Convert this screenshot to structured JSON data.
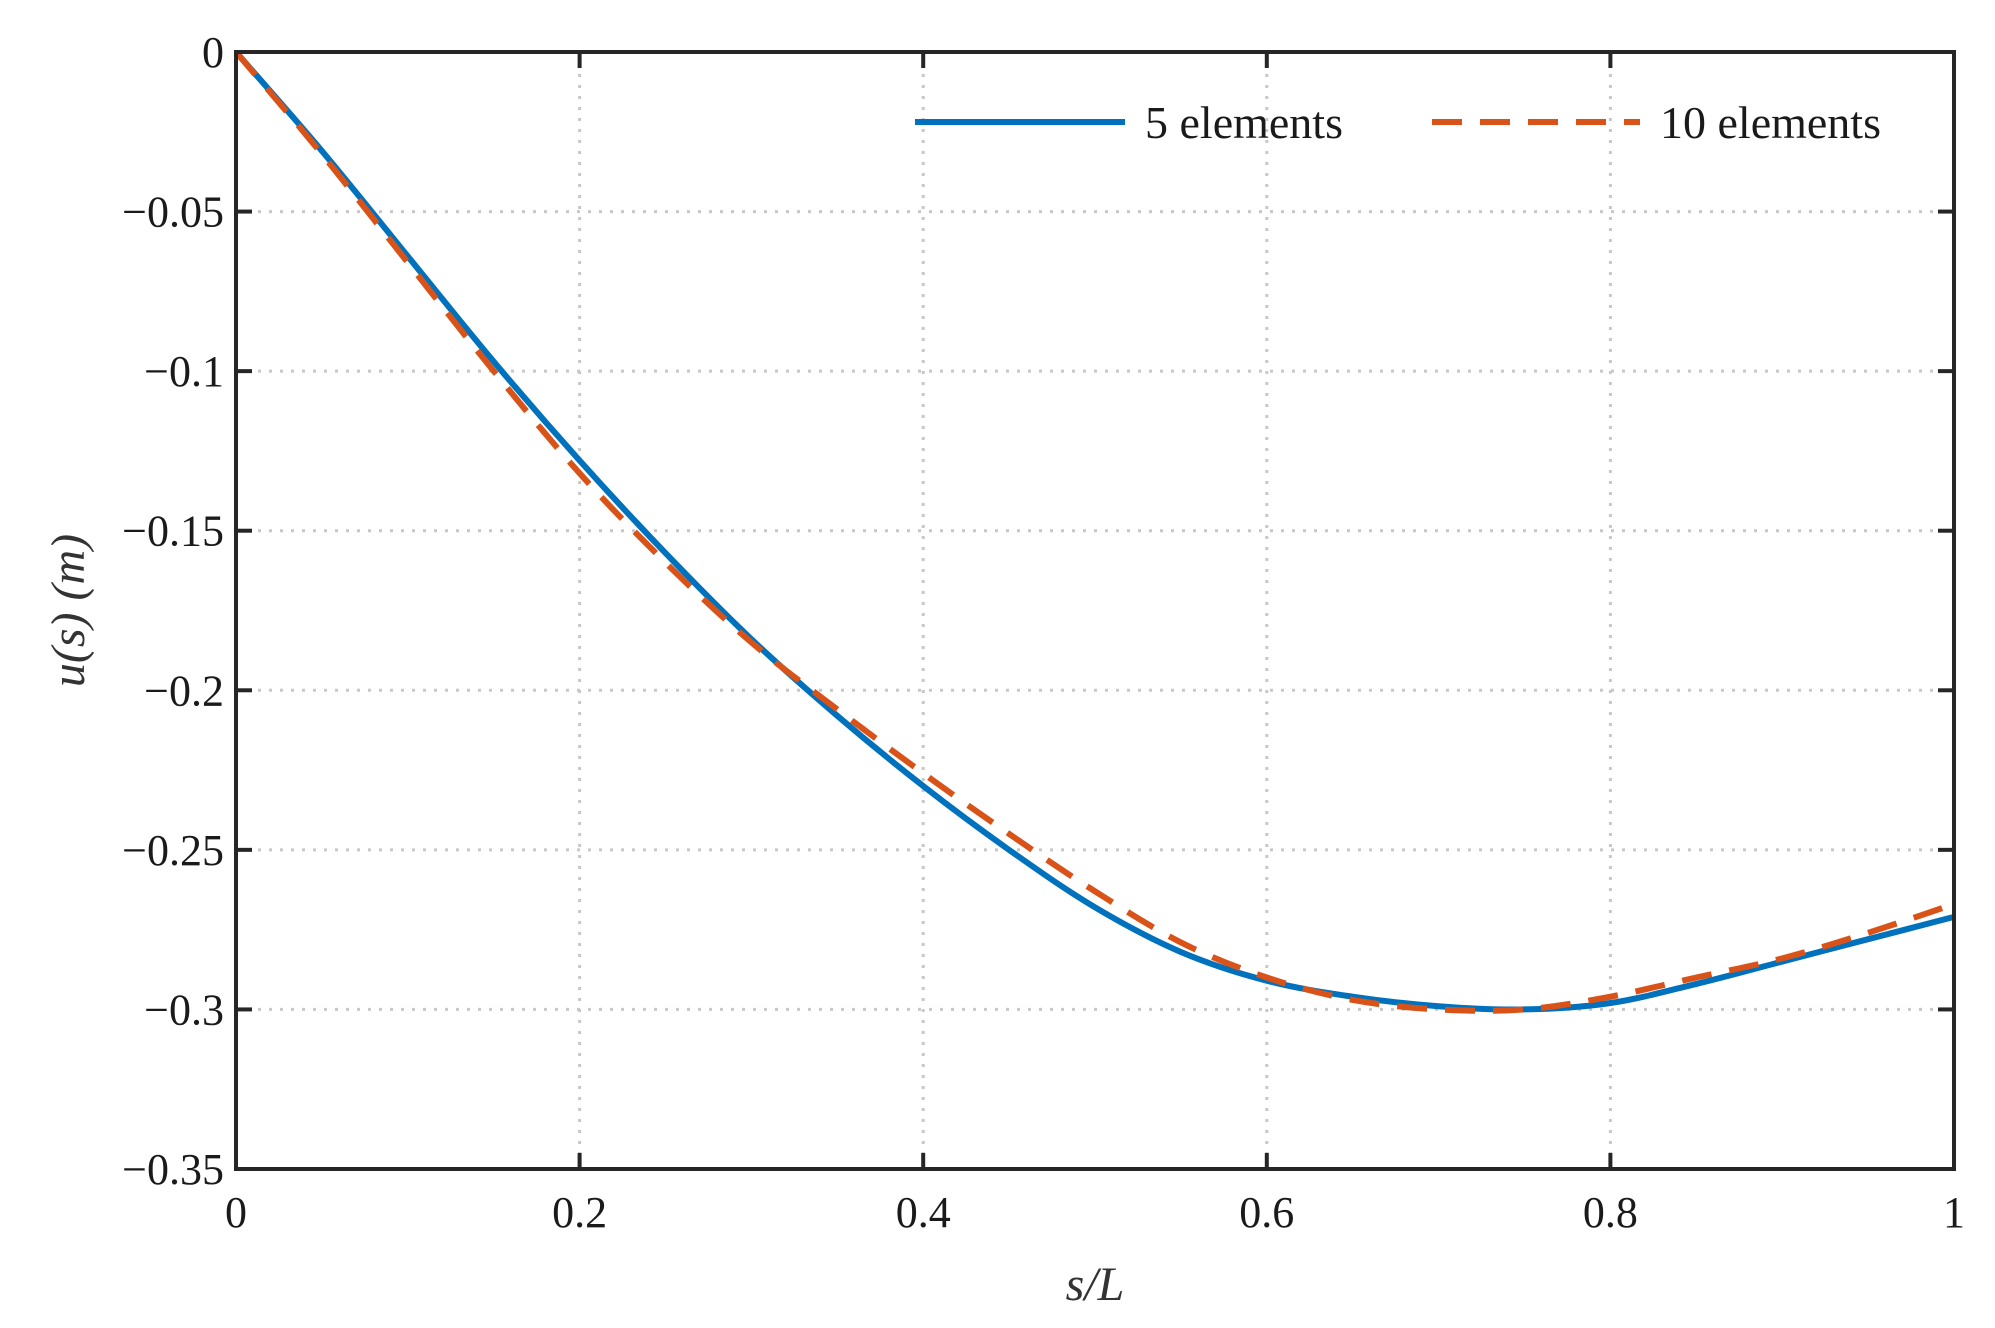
{
  "chart_data": {
    "type": "line",
    "xlabel": "s/L",
    "ylabel": "u(s) (m)",
    "xlim": [
      0,
      1
    ],
    "ylim": [
      -0.35,
      0
    ],
    "xticks": [
      0,
      0.2,
      0.4,
      0.6,
      0.8,
      1
    ],
    "xtick_labels": [
      "0",
      "0.2",
      "0.4",
      "0.6",
      "0.8",
      "1"
    ],
    "yticks": [
      0,
      -0.05,
      -0.1,
      -0.15,
      -0.2,
      -0.25,
      -0.3,
      -0.35
    ],
    "ytick_labels": [
      "0",
      "−0.05",
      "−0.1",
      "−0.15",
      "−0.2",
      "−0.25",
      "−0.3",
      "−0.35"
    ],
    "grid": true,
    "legend_position": "top-right",
    "series": [
      {
        "name": "5 elements",
        "color": "#0072BD",
        "style": "solid",
        "x": [
          0,
          0.05,
          0.1,
          0.15,
          0.2,
          0.25,
          0.3,
          0.35,
          0.4,
          0.45,
          0.5,
          0.55,
          0.6,
          0.65,
          0.7,
          0.75,
          0.8,
          0.85,
          0.9,
          0.95,
          1.0
        ],
        "y": [
          0,
          -0.031,
          -0.064,
          -0.097,
          -0.128,
          -0.157,
          -0.184,
          -0.208,
          -0.23,
          -0.25,
          -0.268,
          -0.282,
          -0.291,
          -0.296,
          -0.299,
          -0.3,
          -0.298,
          -0.292,
          -0.285,
          -0.278,
          -0.271
        ]
      },
      {
        "name": "10 elements",
        "color": "#D95319",
        "style": "dashed",
        "x": [
          0,
          0.05,
          0.1,
          0.15,
          0.2,
          0.25,
          0.3,
          0.35,
          0.4,
          0.45,
          0.5,
          0.55,
          0.6,
          0.65,
          0.7,
          0.75,
          0.8,
          0.85,
          0.9,
          0.95,
          1.0
        ],
        "y": [
          0,
          -0.032,
          -0.066,
          -0.1,
          -0.132,
          -0.16,
          -0.185,
          -0.206,
          -0.226,
          -0.245,
          -0.263,
          -0.279,
          -0.29,
          -0.297,
          -0.3,
          -0.3,
          -0.296,
          -0.29,
          -0.284,
          -0.276,
          -0.267
        ]
      }
    ]
  }
}
